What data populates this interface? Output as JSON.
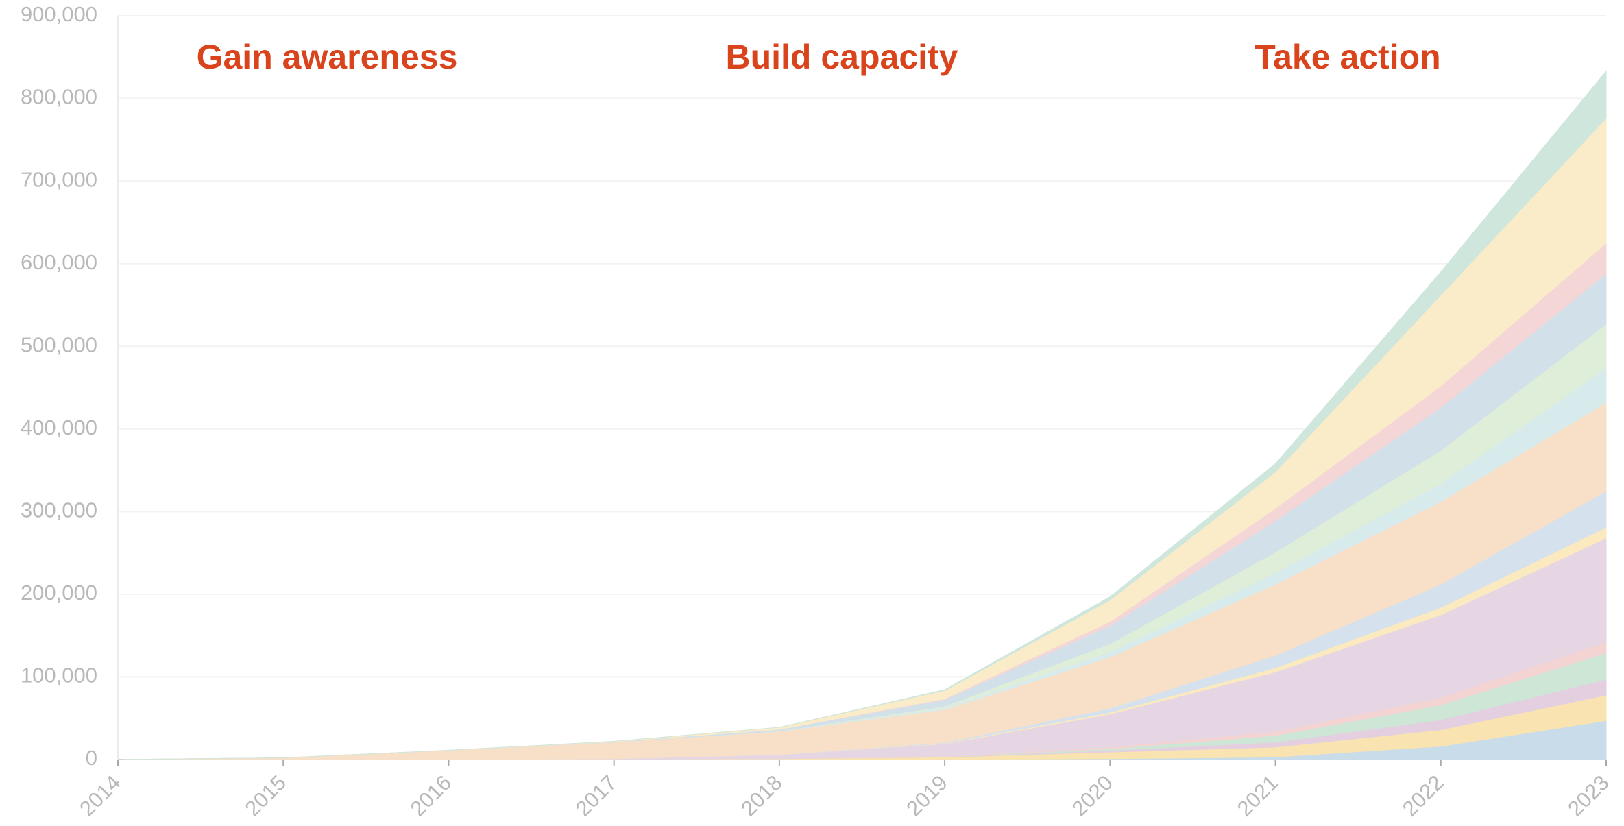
{
  "chart_data": {
    "type": "stacked-area",
    "annotations": [
      "Gain awareness",
      "Build capacity",
      "Take action"
    ],
    "x": [
      2014,
      2015,
      2016,
      2017,
      2018,
      2019,
      2020,
      2021,
      2022,
      2023
    ],
    "xlim": [
      2014,
      2023
    ],
    "xticks": [
      2014,
      2015,
      2016,
      2017,
      2018,
      2019,
      2020,
      2021,
      2022,
      2023
    ],
    "ylim": [
      0,
      900000
    ],
    "yticks": [
      0,
      {
        "value": 100000,
        "label": "100,000"
      },
      {
        "value": 200000,
        "label": "200,000"
      },
      {
        "value": 300000,
        "label": "300,000"
      },
      {
        "value": 400000,
        "label": "400,000"
      },
      {
        "value": 500000,
        "label": "500,000"
      },
      {
        "value": 600000,
        "label": "600,000"
      },
      {
        "value": 700000,
        "label": "700,000"
      },
      {
        "value": 800000,
        "label": "800,000"
      },
      {
        "value": 900000,
        "label": "900,000"
      }
    ],
    "grid": true,
    "series": [
      {
        "color": "#c9dcea",
        "values": [
          0,
          0,
          0,
          0,
          0,
          0,
          1000,
          3000,
          16000,
          47000
        ]
      },
      {
        "color": "#f9e3b0",
        "values": [
          0,
          0,
          0,
          500,
          1000,
          3000,
          8000,
          12000,
          20000,
          31000
        ]
      },
      {
        "color": "#e3cfe0",
        "values": [
          0,
          0,
          0,
          0,
          0,
          500,
          2000,
          6000,
          12000,
          19000
        ]
      },
      {
        "color": "#cde6d6",
        "values": [
          0,
          0,
          0,
          0,
          0,
          0,
          2000,
          8000,
          18000,
          32000
        ]
      },
      {
        "color": "#f4d3d3",
        "values": [
          0,
          0,
          0,
          0,
          0,
          500,
          2000,
          5000,
          9000,
          13000
        ]
      },
      {
        "color": "#e6d6e3",
        "values": [
          0,
          0,
          200,
          500,
          5000,
          15000,
          40000,
          72000,
          100000,
          126000
        ]
      },
      {
        "color": "#fbe9c0",
        "values": [
          0,
          0,
          0,
          0,
          0,
          500,
          2000,
          5000,
          9000,
          13000
        ]
      },
      {
        "color": "#d5e1ec",
        "values": [
          0,
          0,
          0,
          0,
          0,
          1000,
          5000,
          15000,
          28000,
          44000
        ]
      },
      {
        "color": "#f8e0c8",
        "values": [
          0,
          2000,
          11000,
          20000,
          28000,
          40000,
          62000,
          86000,
          100000,
          107000
        ]
      },
      {
        "color": "#d8ebec",
        "values": [
          0,
          0,
          0,
          0,
          500,
          2000,
          6000,
          14000,
          22000,
          42000
        ]
      },
      {
        "color": "#dfeed8",
        "values": [
          0,
          0,
          0,
          0,
          0,
          2000,
          10000,
          25000,
          40000,
          53000
        ]
      },
      {
        "color": "#d2e0ea",
        "values": [
          0,
          0,
          0,
          500,
          2000,
          8000,
          22000,
          38000,
          52000,
          61000
        ]
      },
      {
        "color": "#f5d6d6",
        "values": [
          0,
          0,
          0,
          0,
          0,
          1000,
          5000,
          15000,
          26000,
          37000
        ]
      },
      {
        "color": "#faecc8",
        "values": [
          0,
          0,
          0,
          500,
          2500,
          10000,
          26000,
          44000,
          110000,
          151000
        ]
      },
      {
        "color": "#cfe6dc",
        "values": [
          0,
          0,
          0,
          0,
          0,
          1000,
          4000,
          10000,
          28000,
          57000
        ]
      }
    ]
  }
}
